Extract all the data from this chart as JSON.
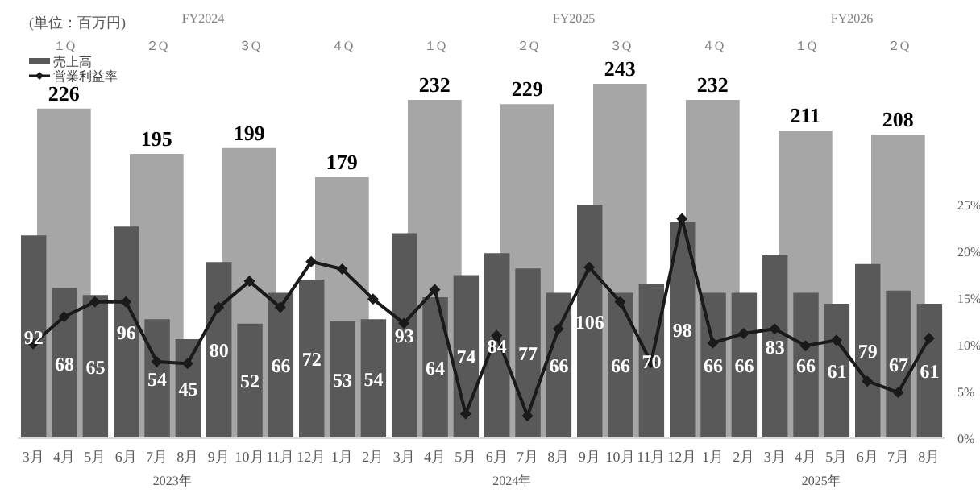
{
  "chart_data": [
    {
      "type": "bar",
      "categories": [
        "１Q",
        "２Q",
        "３Q",
        "４Q",
        "１Q",
        "２Q",
        "３Q",
        "４Q",
        "１Q",
        "２Q"
      ],
      "values": [
        226,
        195,
        199,
        179,
        232,
        229,
        243,
        232,
        211,
        208
      ],
      "color": "#a6a6a6",
      "data_labels": true,
      "annotations": [
        "FY2024",
        "FY2025",
        "FY2026"
      ]
    },
    {
      "type": "bar",
      "categories": [
        "3月",
        "4月",
        "5月",
        "6月",
        "7月",
        "8月",
        "9月",
        "10月",
        "11月",
        "12月",
        "1月",
        "2月",
        "3月",
        "4月",
        "5月",
        "6月",
        "7月",
        "8月",
        "9月",
        "10月",
        "11月",
        "12月",
        "1月",
        "2月",
        "3月",
        "4月",
        "5月",
        "6月",
        "7月",
        "8月"
      ],
      "series": [
        {
          "name": "売上高",
          "color": "#595959",
          "values": [
            92,
            68,
            65,
            96,
            54,
            45,
            80,
            52,
            66,
            72,
            53,
            54,
            93,
            64,
            74,
            84,
            77,
            66,
            106,
            66,
            70,
            98,
            66,
            66,
            83,
            66,
            61,
            79,
            67,
            61
          ],
          "value_labels": [
            "92",
            "68",
            "65",
            "96",
            "54",
            "45",
            "80",
            "52",
            "66",
            "72",
            "53",
            "54",
            "93",
            "64",
            "74",
            "84",
            "77",
            "66",
            "106",
            "66",
            "70",
            "98",
            "66",
            "66",
            "83",
            "66",
            "61",
            "79",
            "67",
            "61"
          ]
        },
        {
          "type": "line",
          "name": "営業利益率",
          "axis": "y2",
          "color": "#1a1a1a",
          "marker": "diamond",
          "line_style": "solid",
          "values": [
            10.1,
            13.0,
            14.6,
            14.6,
            8.2,
            8.0,
            14.0,
            16.8,
            14.0,
            18.9,
            18.1,
            14.9,
            12.3,
            15.9,
            2.6,
            11.0,
            2.4,
            11.7,
            18.3,
            14.6,
            8.1,
            23.5,
            10.2,
            11.2,
            11.7,
            9.9,
            10.5,
            6.1,
            4.9,
            10.7
          ]
        }
      ],
      "y2lim": [
        0,
        25
      ],
      "y2ticks": [
        {
          "value": 0,
          "label": "0%"
        },
        {
          "value": 5,
          "label": "5%"
        },
        {
          "value": 10,
          "label": "10%"
        },
        {
          "value": 15,
          "label": "15%"
        },
        {
          "value": 20,
          "label": "20%"
        },
        {
          "value": 25,
          "label": "25%"
        }
      ],
      "legend": "top left",
      "annotations": [
        "(単位：百万円)",
        "2023年",
        "2024年",
        "2025年"
      ]
    }
  ]
}
